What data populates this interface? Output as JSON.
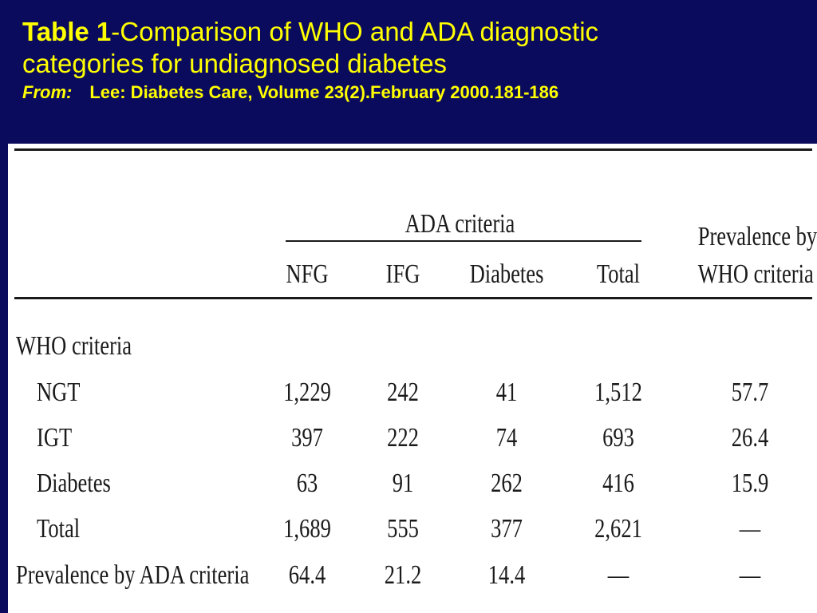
{
  "header": {
    "table_label": "Table 1",
    "title_rest": "-Comparison of WHO and ADA diagnostic",
    "title_line2": "categories for undiagnosed diabetes",
    "from_label": "From:",
    "source": "Lee: Diabetes Care, Volume 23(2).February 2000.181-186"
  },
  "table": {
    "group_header": "ADA criteria",
    "prevalence_header_1": "Prevalence by",
    "prevalence_header_2": "WHO criteria",
    "columns": [
      "NFG",
      "IFG",
      "Diabetes",
      "Total"
    ],
    "section_label": "WHO criteria",
    "rows": [
      {
        "label": "NGT",
        "values": [
          "1,229",
          "242",
          "41",
          "1,512",
          "57.7"
        ]
      },
      {
        "label": "IGT",
        "values": [
          "397",
          "222",
          "74",
          "693",
          "26.4"
        ]
      },
      {
        "label": "Diabetes",
        "values": [
          "63",
          "91",
          "262",
          "416",
          "15.9"
        ]
      },
      {
        "label": "Total",
        "values": [
          "1,689",
          "555",
          "377",
          "2,621",
          "—"
        ]
      },
      {
        "label": "Prevalence by ADA criteria",
        "values": [
          "64.4",
          "21.2",
          "14.4",
          "—",
          "—"
        ]
      }
    ]
  },
  "colors": {
    "background": "#0b0b5e",
    "header_text": "#ffff00",
    "table_bg": "#ffffff"
  }
}
